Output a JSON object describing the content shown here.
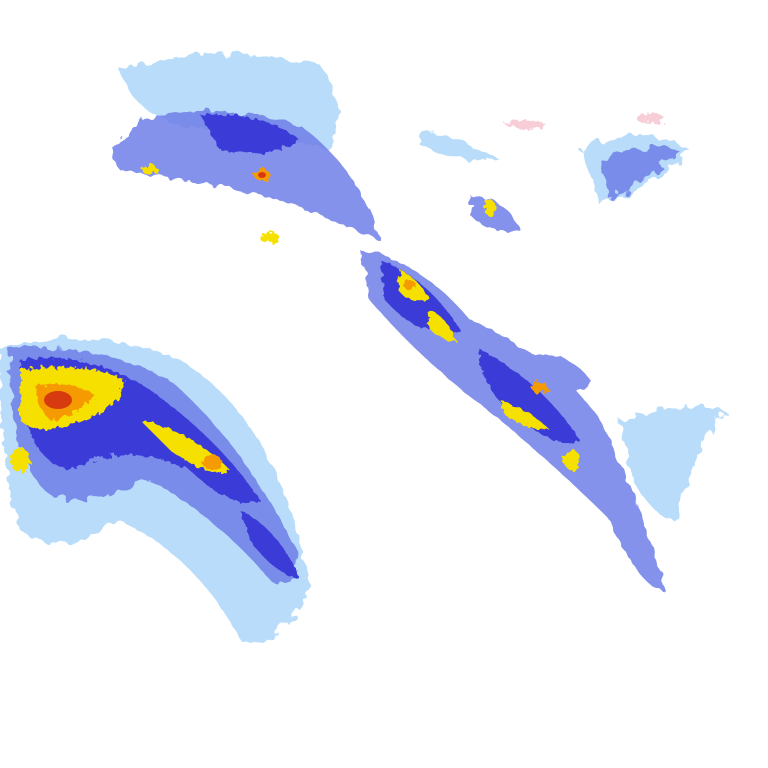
{
  "radar": {
    "colors": {
      "light": "#b8dcfa",
      "pale": "#8fc4f4",
      "medium": "#6f7fe8",
      "strong": "#3a3ad8",
      "yellow": "#f5e000",
      "orange": "#f59a00",
      "red": "#d83a10",
      "pink": "#f4b8c8"
    }
  }
}
